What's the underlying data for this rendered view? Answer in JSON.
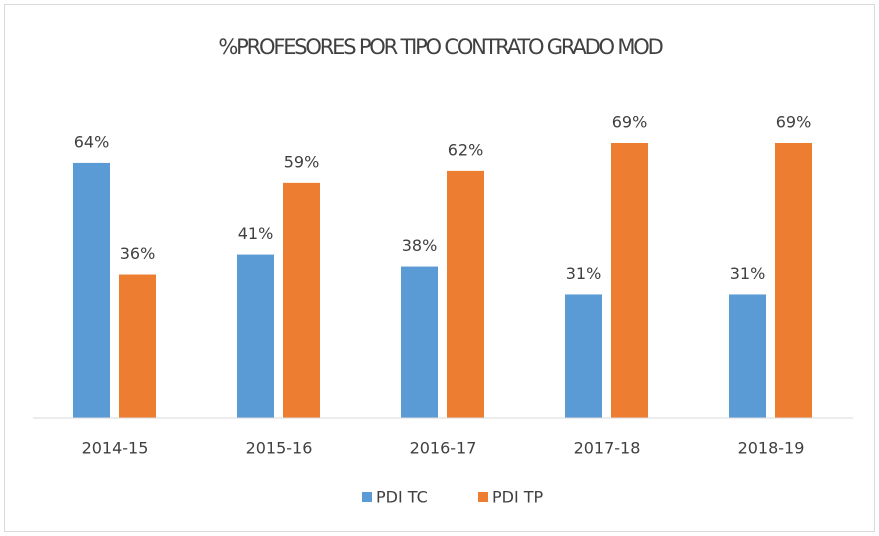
{
  "chart_data": {
    "type": "bar",
    "title": "%PROFESORES POR TIPO CONTRATO GRADO MOD",
    "categories": [
      "2014-15",
      "2015-16",
      "2016-17",
      "2017-18",
      "2018-19"
    ],
    "series": [
      {
        "name": "PDI TC",
        "color": "#5b9bd5",
        "values": [
          64,
          41,
          38,
          31,
          31
        ],
        "value_labels": [
          "64%",
          "41%",
          "38%",
          "31%",
          "31%"
        ]
      },
      {
        "name": "PDI TP",
        "color": "#ed7d31",
        "values": [
          36,
          59,
          62,
          69,
          69
        ],
        "value_labels": [
          "36%",
          "59%",
          "62%",
          "69%",
          "69%"
        ]
      }
    ],
    "ylim": [
      0,
      70
    ],
    "legend": "bottom"
  }
}
